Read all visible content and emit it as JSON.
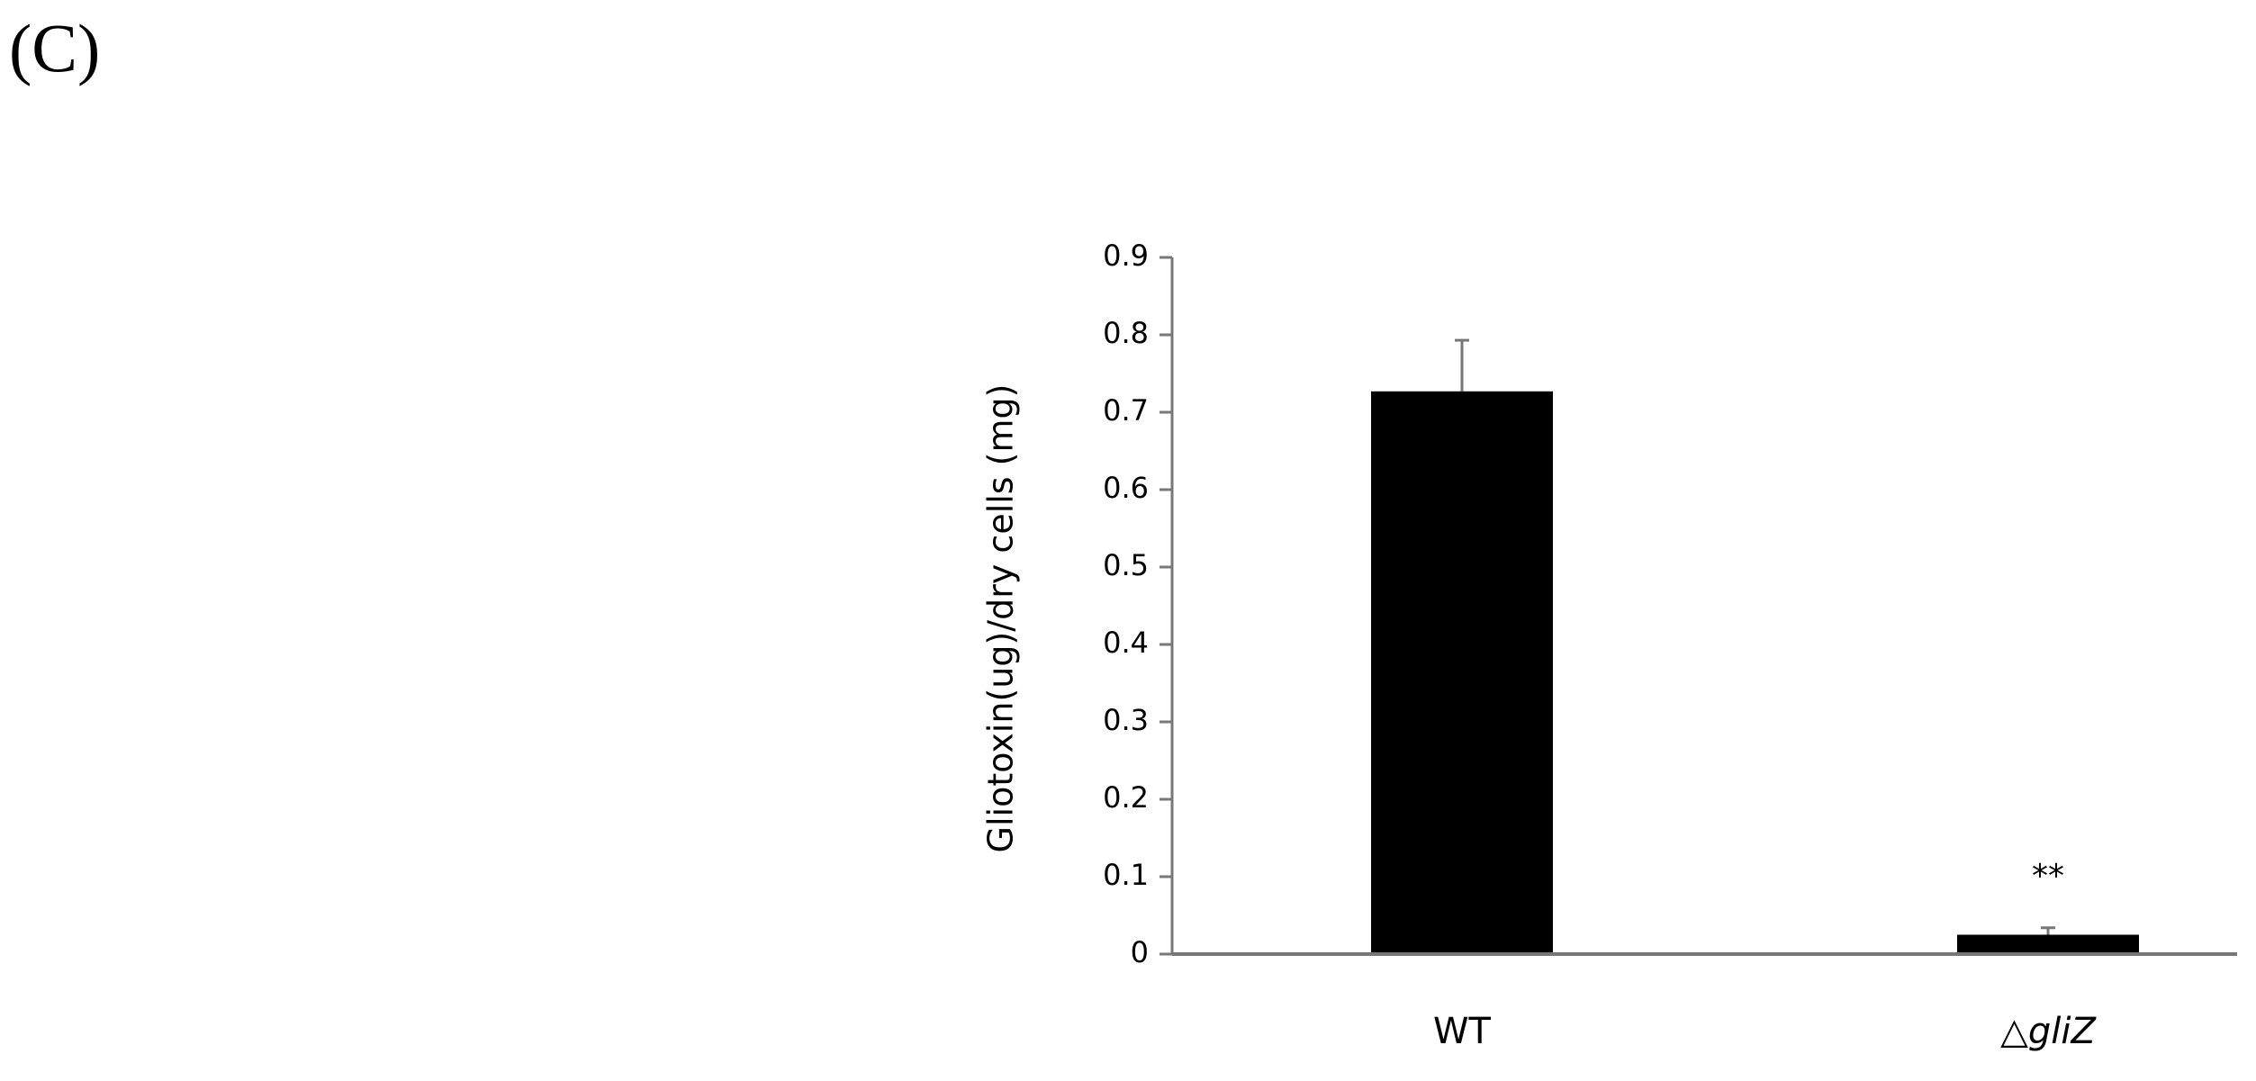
{
  "chart_data": {
    "type": "bar",
    "panel_label": "(C)",
    "y_label": "Gliotoxin(ug)/dry cells (mg)",
    "categories": [
      "WT",
      "△gliZ"
    ],
    "values": [
      0.727,
      0.025
    ],
    "errors": [
      0.066,
      0.009
    ],
    "annotations": [
      {
        "category": 1,
        "text": "**"
      }
    ],
    "color": "#000000",
    "ylim": [
      0,
      0.9
    ],
    "yticks": [
      0,
      0.1,
      0.2,
      0.3,
      0.4,
      0.5,
      0.6,
      0.7,
      0.8,
      0.9
    ],
    "grid": false
  }
}
